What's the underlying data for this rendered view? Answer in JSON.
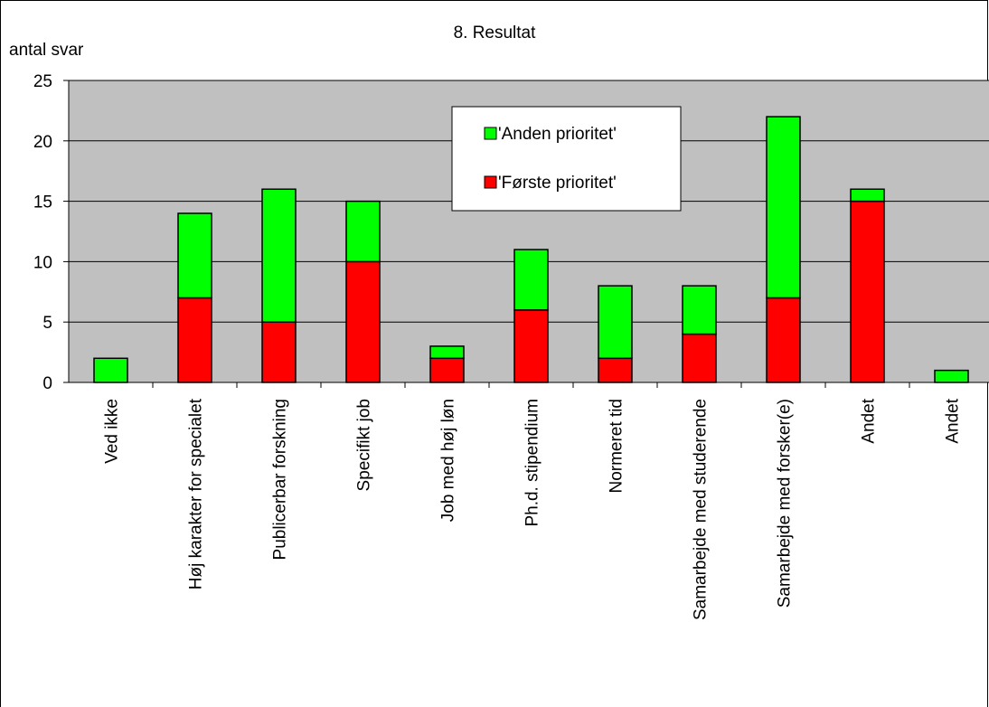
{
  "chart_data": {
    "type": "bar",
    "stacked": true,
    "title": "8. Resultat",
    "ylabel": "antal svar",
    "xlabel": "",
    "ylim": [
      0,
      25
    ],
    "yticks": [
      "0",
      "5",
      "10",
      "15",
      "20",
      "25"
    ],
    "grid": true,
    "legend_position": "top-right",
    "plot_background": "#c0c0c0",
    "categories": [
      "Ved ikke",
      "Høj karakter for specialet",
      "Publicerbar forskning",
      "Specifikt job",
      "Job med høj løn",
      "Ph.d. stipendium",
      "Normeret tid",
      "Samarbejde med studerende",
      "Samarbejde med forsker(e)",
      "Andet",
      "Andet"
    ],
    "series": [
      {
        "name": "'Første prioritet'",
        "color": "#ff0000",
        "values": [
          0,
          7,
          5,
          10,
          2,
          6,
          2,
          4,
          7,
          15,
          0
        ]
      },
      {
        "name": "'Anden prioritet'",
        "color": "#00ff00",
        "values": [
          2,
          7,
          11,
          5,
          1,
          5,
          6,
          4,
          15,
          1,
          1
        ]
      }
    ],
    "legend_order": [
      1,
      0
    ]
  }
}
